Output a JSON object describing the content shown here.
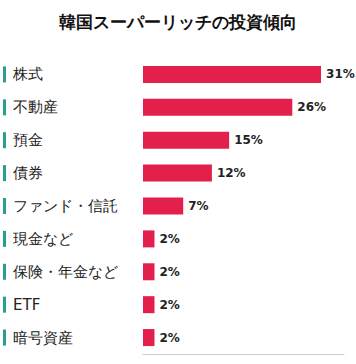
{
  "chart_data": {
    "type": "bar",
    "orientation": "horizontal",
    "title": "韓国スーパーリッチの投資傾向",
    "categories": [
      "株式",
      "不動産",
      "預金",
      "債券",
      "ファンド・信託",
      "現金など",
      "保険・年金など",
      "ETF",
      "暗号資産"
    ],
    "values": [
      31,
      26,
      15,
      12,
      7,
      2,
      2,
      2,
      2
    ],
    "value_labels": [
      "31%",
      "26%",
      "15%",
      "12%",
      "7%",
      "2%",
      "2%",
      "2%",
      "2%"
    ],
    "color": "#e3204c",
    "xlim": [
      0,
      35
    ],
    "xticks": [
      0,
      35
    ],
    "grid": false,
    "data_labels": true,
    "tick_labels": false
  }
}
